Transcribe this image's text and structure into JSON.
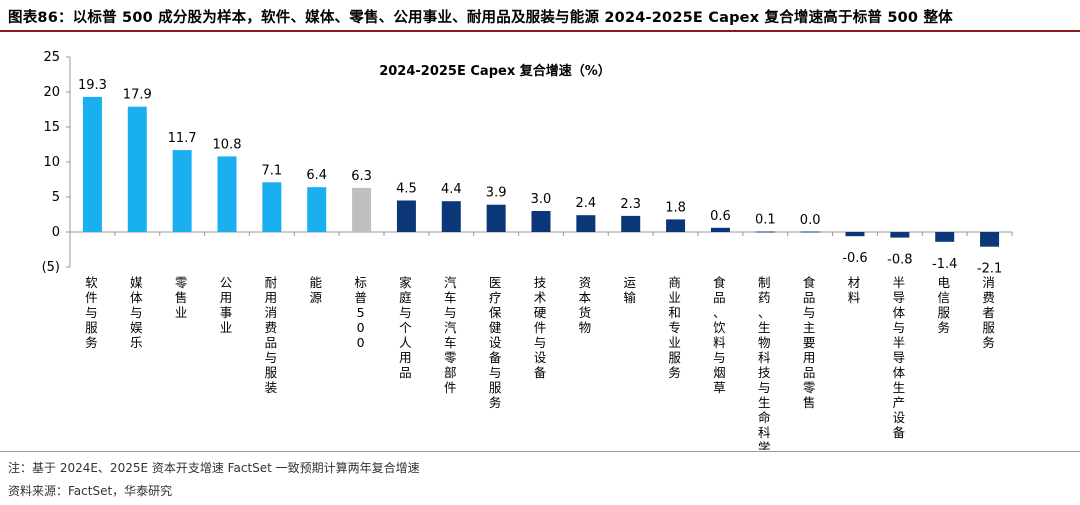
{
  "figure_title": "图表86：以标普 500 成分股为样本，软件、媒体、零售、公用事业、耐用品及服装与能源 2024-2025E Capex 复合增速高于标普 500 整体",
  "notes": {
    "note": "注：基于 2024E、2025E 资本开支增速 FactSet 一致预期计算两年复合增速",
    "source": "资料来源：FactSet，华泰研究"
  },
  "colors": {
    "light_blue": "#1ab0ef",
    "gray": "#bfbfbf",
    "dark_navy": "#0b3677",
    "header_rule": "#8a1c1c"
  },
  "chart_data": {
    "type": "bar",
    "title": "2024-2025E Capex 复合增速（%）",
    "xlabel": "",
    "ylabel": "",
    "ylim": [
      -5,
      25
    ],
    "yticks": [
      25,
      20,
      15,
      10,
      5,
      0,
      -5
    ],
    "ytick_labels": [
      "25",
      "20",
      "15",
      "10",
      "5",
      "0",
      "(5)"
    ],
    "grid": false,
    "legend": "none",
    "categories": [
      "软件与服务",
      "媒体与娱乐",
      "零售业",
      "公用事业",
      "耐用消费品与服装",
      "能源",
      "标普500",
      "家庭与个人用品",
      "汽车与汽车零部件",
      "医疗保健设备与服务",
      "技术硬件与设备",
      "资本货物",
      "运输",
      "商业和专业服务",
      "食品、饮料与烟草",
      "制药、生物科技与生命科学",
      "食品与主要用品零售",
      "材料",
      "半导体与半导体生产设备",
      "电信服务",
      "消费者服务"
    ],
    "values": [
      19.3,
      17.9,
      11.7,
      10.8,
      7.1,
      6.4,
      6.3,
      4.5,
      4.4,
      3.9,
      3.0,
      2.4,
      2.3,
      1.8,
      0.6,
      0.1,
      0.0,
      -0.6,
      -0.8,
      -1.4,
      -2.1
    ],
    "value_labels": [
      "19.3",
      "17.9",
      "11.7",
      "10.8",
      "7.1",
      "6.4",
      "6.3",
      "4.5",
      "4.4",
      "3.9",
      "3.0",
      "2.4",
      "2.3",
      "1.8",
      "0.6",
      "0.1",
      "0.0",
      "-0.6",
      "-0.8",
      "-1.4",
      "-2.1"
    ],
    "bar_colors": [
      "light_blue",
      "light_blue",
      "light_blue",
      "light_blue",
      "light_blue",
      "light_blue",
      "gray",
      "dark_navy",
      "dark_navy",
      "dark_navy",
      "dark_navy",
      "dark_navy",
      "dark_navy",
      "dark_navy",
      "dark_navy",
      "dark_navy",
      "dark_navy",
      "dark_navy",
      "dark_navy",
      "dark_navy",
      "dark_navy"
    ]
  }
}
